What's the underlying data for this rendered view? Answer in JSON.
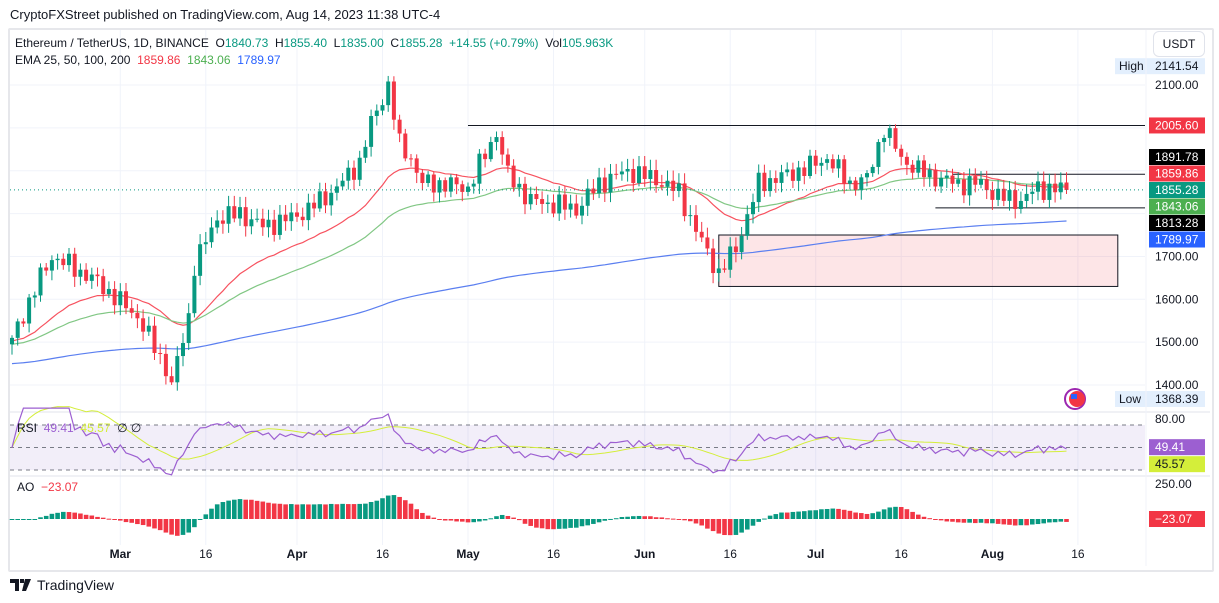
{
  "header": {
    "published": "CryptoFXStreet published on TradingView.com, Aug 14, 2023 11:38 UTC-4"
  },
  "legend": {
    "symbol": "Ethereum / TetherUS, 1D, BINANCE",
    "o_label": "O",
    "o": "1840.73",
    "h_label": "H",
    "h": "1855.40",
    "l_label": "L",
    "l": "1835.00",
    "c_label": "C",
    "c": "1855.28",
    "change": "+14.55 (+0.79%)",
    "vol_label": "Vol",
    "vol": "105.963K",
    "ema_label": "EMA 25, 50, 100, 200",
    "ema25": "1859.86",
    "ema50": "1843.06",
    "ema100": "1789.97"
  },
  "currency": "USDT",
  "rsi": {
    "label": "RSI",
    "value": "49.41",
    "ma": "45.57",
    "extra": "∅ ∅"
  },
  "ao": {
    "label": "AO",
    "value": "−23.07"
  },
  "footer": {
    "brand": "TradingView"
  },
  "colors": {
    "up": "#089981",
    "down": "#f23645",
    "ema25": "#f7525f",
    "ema50": "#81c784",
    "ema200": "#5b7ff0",
    "rsi": "#9c5fd1",
    "rsima": "#d4ee3a"
  },
  "chart_data": {
    "type": "candlestick",
    "title": "Ethereum / TetherUS, 1D, BINANCE",
    "start_date": "2023-02-10",
    "end_date": "2023-08-14",
    "ylim": [
      1350,
      2200
    ],
    "y_ticks": [
      "2100.00",
      "1700.00",
      "1600.00",
      "1500.00",
      "1400.00"
    ],
    "x_ticks": [
      {
        "label": "Mar",
        "day": 19
      },
      {
        "label": "16",
        "day": 34
      },
      {
        "label": "Apr",
        "day": 50
      },
      {
        "label": "16",
        "day": 65
      },
      {
        "label": "May",
        "day": 80
      },
      {
        "label": "16",
        "day": 95
      },
      {
        "label": "Jun",
        "day": 111
      },
      {
        "label": "16",
        "day": 126
      },
      {
        "label": "Jul",
        "day": 141
      },
      {
        "label": "16",
        "day": 156
      },
      {
        "label": "Aug",
        "day": 172
      },
      {
        "label": "16",
        "day": 187
      }
    ],
    "close_keypoints": [
      [
        0,
        1510
      ],
      [
        5,
        1650
      ],
      [
        7,
        1700
      ],
      [
        10,
        1680
      ],
      [
        15,
        1640
      ],
      [
        22,
        1560
      ],
      [
        27,
        1440
      ],
      [
        28,
        1400
      ],
      [
        31,
        1560
      ],
      [
        32,
        1680
      ],
      [
        36,
        1790
      ],
      [
        40,
        1800
      ],
      [
        44,
        1770
      ],
      [
        49,
        1790
      ],
      [
        52,
        1810
      ],
      [
        57,
        1860
      ],
      [
        61,
        1920
      ],
      [
        63,
        2010
      ],
      [
        66,
        2100
      ],
      [
        68,
        1960
      ],
      [
        70,
        1930
      ],
      [
        72,
        1870
      ],
      [
        75,
        1870
      ],
      [
        80,
        1860
      ],
      [
        85,
        1990
      ],
      [
        87,
        1890
      ],
      [
        91,
        1830
      ],
      [
        96,
        1820
      ],
      [
        99,
        1810
      ],
      [
        103,
        1870
      ],
      [
        108,
        1900
      ],
      [
        113,
        1880
      ],
      [
        117,
        1850
      ],
      [
        120,
        1760
      ],
      [
        124,
        1660
      ],
      [
        127,
        1720
      ],
      [
        131,
        1870
      ],
      [
        136,
        1890
      ],
      [
        140,
        1910
      ],
      [
        143,
        1930
      ],
      [
        147,
        1870
      ],
      [
        150,
        1880
      ],
      [
        153,
        2000
      ],
      [
        156,
        1930
      ],
      [
        159,
        1900
      ],
      [
        163,
        1880
      ],
      [
        166,
        1870
      ],
      [
        170,
        1870
      ],
      [
        173,
        1840
      ],
      [
        177,
        1830
      ],
      [
        180,
        1860
      ],
      [
        185,
        1855
      ]
    ],
    "high": {
      "label": "High",
      "value": "2141.54"
    },
    "low": {
      "label": "Low",
      "value": "1368.39"
    },
    "levels": [
      {
        "value": 2005.6,
        "label": "2005.60",
        "bg": "#f23645",
        "from_day": 80
      },
      {
        "value": 1891.78,
        "label": "1891.78",
        "bg": "#000000",
        "from_day": 165
      },
      {
        "value": 1813.28,
        "label": "1813.28",
        "bg": "#000000",
        "from_day": 162
      }
    ],
    "price_tags": [
      {
        "value": 1859.86,
        "label": "1859.86",
        "bg": "#f23645"
      },
      {
        "value": 1855.28,
        "label": "1855.28",
        "bg": "#089981"
      },
      {
        "value": 1843.06,
        "label": "1843.06",
        "bg": "#4caf50"
      },
      {
        "value": 1789.97,
        "label": "1789.97",
        "bg": "#2962ff"
      }
    ],
    "zone": {
      "from_day": 124,
      "to_day": 194,
      "top": 1750,
      "bottom": 1630
    },
    "rsi_axis": "80.00",
    "ao_axis": "250.00"
  }
}
